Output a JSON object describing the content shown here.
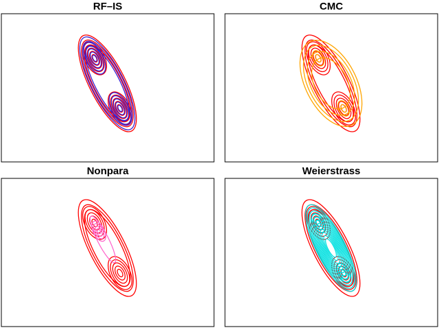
{
  "panels": [
    {
      "title": "RF–IS",
      "true_color": "#ff0000",
      "approx_color": "#3a1fd0",
      "style": "match"
    },
    {
      "title": "CMC",
      "true_color": "#ff0000",
      "approx_color": "#ffa500",
      "style": "wide"
    },
    {
      "title": "Nonpara",
      "true_color": "#ff0000",
      "approx_color": "#ff66cc",
      "style": "upper"
    },
    {
      "title": "Weierstrass",
      "true_color": "#ff0000",
      "approx_color": "#00e0e0",
      "style": "dense"
    }
  ]
}
